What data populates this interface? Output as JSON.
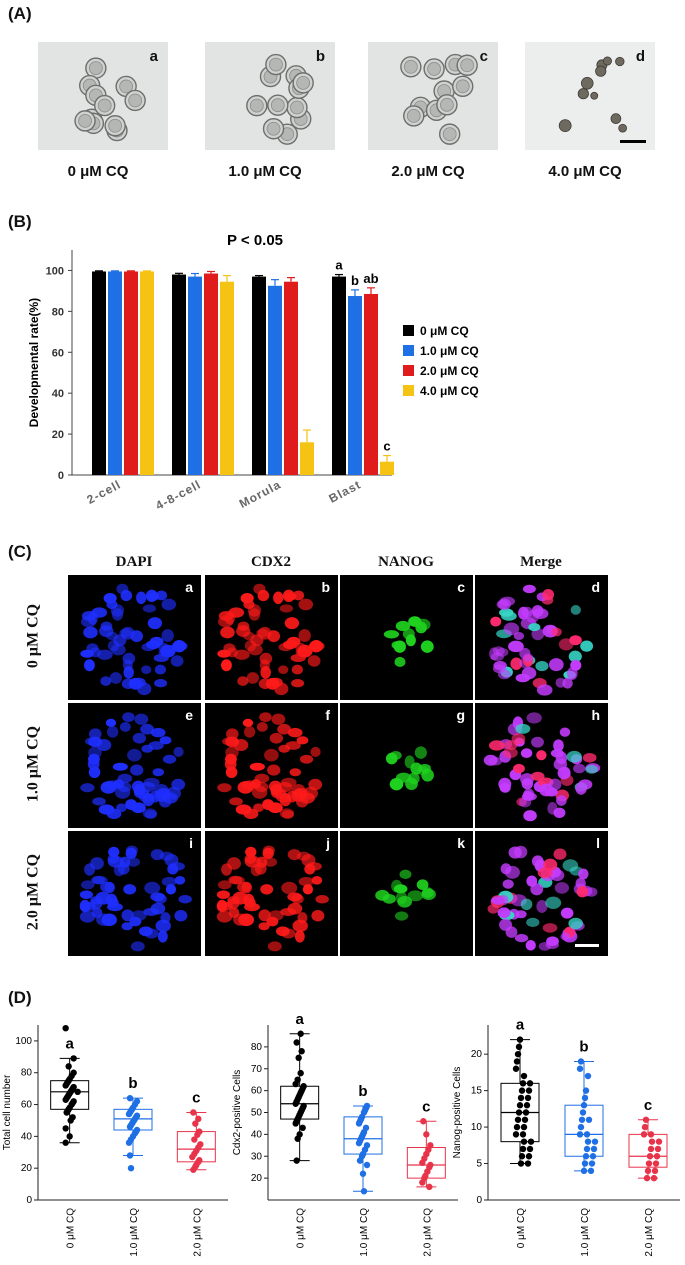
{
  "panel_a": {
    "label": "(A)",
    "images": [
      {
        "letter": "a",
        "caption": "0 μM CQ"
      },
      {
        "letter": "b",
        "caption": "1.0 μM CQ"
      },
      {
        "letter": "c",
        "caption": "2.0 μM CQ"
      },
      {
        "letter": "d",
        "caption": "4.0 μM CQ"
      }
    ]
  },
  "panel_b": {
    "label": "(B)",
    "significance": "P < 0.05"
  },
  "panel_c": {
    "label": "(C)",
    "channels": [
      "DAPI",
      "CDX2",
      "NANOG",
      "Merge"
    ],
    "rows": [
      "0 μM CQ",
      "1.0 μM CQ",
      "2.0 μM CQ"
    ],
    "letters": [
      [
        "a",
        "b",
        "c",
        "d"
      ],
      [
        "e",
        "f",
        "g",
        "h"
      ],
      [
        "i",
        "j",
        "k",
        "l"
      ]
    ],
    "colors": {
      "DAPI": "#1f2fff",
      "CDX2": "#ff1a1a",
      "NANOG": "#1fd21f",
      "Merge": "#c43cff"
    }
  },
  "panel_d": {
    "label": "(D)"
  },
  "chart_data": [
    {
      "type": "bar",
      "title": "P < 0.05",
      "xlabel": "",
      "ylabel": "Developmental rate(%)",
      "ylim": [
        0,
        110
      ],
      "yticks": [
        0,
        20,
        40,
        60,
        80,
        100
      ],
      "categories": [
        "2-cell",
        "4-8-cell",
        "Morula",
        "Blast"
      ],
      "legend_position": "right",
      "series": [
        {
          "name": "0 μM CQ",
          "color": "#000000",
          "values": [
            99.5,
            98.0,
            97.0,
            97.0
          ],
          "errors": [
            0.3,
            0.6,
            0.5,
            1.0
          ]
        },
        {
          "name": "1.0 μM CQ",
          "color": "#1f6fe5",
          "values": [
            99.5,
            97.0,
            92.5,
            87.5
          ],
          "errors": [
            0.3,
            1.5,
            3.0,
            3.0
          ]
        },
        {
          "name": "2.0 μM CQ",
          "color": "#e01b1b",
          "values": [
            99.5,
            98.5,
            94.5,
            88.5
          ],
          "errors": [
            0.3,
            1.0,
            2.0,
            3.0
          ]
        },
        {
          "name": "4.0 μM CQ",
          "color": "#f5c314",
          "values": [
            99.5,
            94.5,
            16.0,
            6.5
          ],
          "errors": [
            0.3,
            3.0,
            6.0,
            3.0
          ]
        }
      ],
      "annotations": [
        {
          "category": "Blast",
          "series": "0 μM CQ",
          "text": "a"
        },
        {
          "category": "Blast",
          "series": "1.0 μM CQ",
          "text": "b"
        },
        {
          "category": "Blast",
          "series": "2.0 μM CQ",
          "text": "ab"
        },
        {
          "category": "Blast",
          "series": "4.0 μM CQ",
          "text": "c"
        }
      ]
    },
    {
      "type": "scatter",
      "title": "",
      "ylabel": "Total cell number",
      "ylim": [
        0,
        110
      ],
      "yticks": [
        0,
        20,
        40,
        60,
        80,
        100
      ],
      "categories": [
        "0 μM CQ",
        "1.0 μM CQ",
        "2.0 μM CQ"
      ],
      "colors": [
        "#000000",
        "#1f6fe5",
        "#e8344a"
      ],
      "letters": [
        "a",
        "b",
        "c"
      ],
      "boxes": [
        {
          "min": 36,
          "q1": 57,
          "median": 68,
          "q3": 75,
          "max": 89
        },
        {
          "min": 28,
          "q1": 44,
          "median": 51,
          "q3": 57,
          "max": 64
        },
        {
          "min": 19,
          "q1": 24,
          "median": 32,
          "q3": 43,
          "max": 55
        }
      ],
      "points": [
        [
          108,
          89,
          84,
          80,
          78,
          76,
          75,
          74,
          73,
          72,
          71,
          70,
          69,
          68,
          68,
          67,
          66,
          65,
          64,
          63,
          62,
          61,
          60,
          58,
          57,
          56,
          55,
          52,
          50,
          45,
          40,
          36
        ],
        [
          64,
          62,
          60,
          58,
          57,
          56,
          55,
          54,
          53,
          52,
          51,
          50,
          49,
          48,
          47,
          46,
          44,
          43,
          42,
          40,
          38,
          36,
          28,
          20
        ],
        [
          55,
          51,
          48,
          43,
          41,
          38,
          35,
          33,
          31,
          29,
          27,
          25,
          24,
          22,
          21,
          19
        ]
      ]
    },
    {
      "type": "scatter",
      "title": "",
      "ylabel": "Cdx2-positive Cells",
      "ylim": [
        10,
        90
      ],
      "yticks": [
        20,
        30,
        40,
        50,
        60,
        70,
        80
      ],
      "categories": [
        "0 μM CQ",
        "1.0 μM CQ",
        "2.0 μM CQ"
      ],
      "colors": [
        "#000000",
        "#1f6fe5",
        "#e8344a"
      ],
      "letters": [
        "a",
        "b",
        "c"
      ],
      "boxes": [
        {
          "min": 28,
          "q1": 47,
          "median": 54,
          "q3": 62,
          "max": 86
        },
        {
          "min": 14,
          "q1": 31,
          "median": 38,
          "q3": 48,
          "max": 53
        },
        {
          "min": 16,
          "q1": 20,
          "median": 26,
          "q3": 34,
          "max": 46
        }
      ],
      "points": [
        [
          86,
          82,
          78,
          75,
          68,
          65,
          63,
          62,
          61,
          60,
          59,
          58,
          57,
          56,
          55,
          54,
          53,
          52,
          51,
          50,
          49,
          48,
          47,
          46,
          45,
          43,
          40,
          38,
          28
        ],
        [
          53,
          52,
          51,
          50,
          48,
          47,
          46,
          45,
          43,
          41,
          40,
          39,
          38,
          37,
          36,
          35,
          33,
          31,
          30,
          28,
          26,
          22,
          14
        ],
        [
          46,
          40,
          35,
          33,
          31,
          29,
          27,
          26,
          25,
          23,
          21,
          20,
          18,
          16
        ]
      ]
    },
    {
      "type": "scatter",
      "title": "",
      "ylabel": "Nanog-positive Cells",
      "ylim": [
        0,
        24
      ],
      "yticks": [
        0,
        5,
        10,
        15,
        20
      ],
      "categories": [
        "0 μM CQ",
        "1.0 μM CQ",
        "2.0 μM CQ"
      ],
      "colors": [
        "#000000",
        "#1f6fe5",
        "#e8344a"
      ],
      "letters": [
        "a",
        "b",
        "c"
      ],
      "boxes": [
        {
          "min": 5,
          "q1": 8,
          "median": 12,
          "q3": 16,
          "max": 22
        },
        {
          "min": 4,
          "q1": 6,
          "median": 9,
          "q3": 13,
          "max": 19
        },
        {
          "min": 3,
          "q1": 4.5,
          "median": 6,
          "q3": 9,
          "max": 11
        }
      ],
      "points": [
        [
          22,
          21,
          20,
          19,
          18,
          17,
          16,
          16,
          15,
          15,
          14,
          14,
          13,
          13,
          12,
          12,
          11,
          11,
          10,
          10,
          9,
          9,
          8,
          8,
          7,
          7,
          6,
          6,
          5,
          5
        ],
        [
          19,
          18,
          17,
          15,
          14,
          13,
          12,
          11,
          11,
          10,
          9,
          9,
          8,
          8,
          7,
          7,
          6,
          6,
          5,
          5,
          4,
          4
        ],
        [
          11,
          10,
          9,
          9,
          8,
          8,
          7,
          7,
          6,
          6,
          5,
          5,
          4,
          4,
          3,
          3
        ]
      ]
    }
  ]
}
